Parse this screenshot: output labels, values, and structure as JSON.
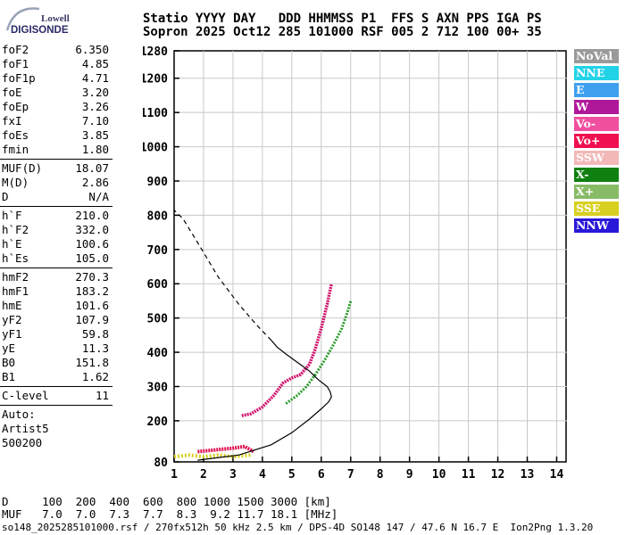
{
  "logo": {
    "line1": "Lowell",
    "line2": "DIGISONDE"
  },
  "header": {
    "line1": "Statio YYYY DAY   DDD HHMMSS P1  FFS S AXN PPS IGA PS",
    "line2": "Sopron 2025 Oct12 285 101000 RSF 005 2 712 100 00+ 35"
  },
  "params_group1": [
    {
      "name": "foF2",
      "value": "6.350"
    },
    {
      "name": "foF1",
      "value": "4.85"
    },
    {
      "name": "foF1p",
      "value": "4.71"
    },
    {
      "name": "foE",
      "value": "3.20"
    },
    {
      "name": "foEp",
      "value": "3.26"
    },
    {
      "name": "fxI",
      "value": "7.10"
    },
    {
      "name": "foEs",
      "value": "3.85"
    },
    {
      "name": "fmin",
      "value": "1.80"
    }
  ],
  "params_group2": [
    {
      "name": "MUF(D)",
      "value": "18.07"
    },
    {
      "name": "M(D)",
      "value": "2.86"
    },
    {
      "name": "D",
      "value": "N/A"
    }
  ],
  "params_group3": [
    {
      "name": "h`F",
      "value": "210.0"
    },
    {
      "name": "h`F2",
      "value": "332.0"
    },
    {
      "name": "h`E",
      "value": "100.6"
    },
    {
      "name": "h`Es",
      "value": "105.0"
    }
  ],
  "params_group4": [
    {
      "name": "hmF2",
      "value": "270.3"
    },
    {
      "name": "hmF1",
      "value": "183.2"
    },
    {
      "name": "hmE",
      "value": "101.6"
    },
    {
      "name": "yF2",
      "value": "107.9"
    },
    {
      "name": "yF1",
      "value": "59.8"
    },
    {
      "name": "yE",
      "value": "11.3"
    },
    {
      "name": "B0",
      "value": "151.8"
    },
    {
      "name": "B1",
      "value": "1.62"
    }
  ],
  "clevel": {
    "name": "C-level",
    "value": "11"
  },
  "auto": [
    "Auto:",
    "Artist5",
    "500200"
  ],
  "legend": [
    {
      "label": "NoVal",
      "color": "#9a9a9a"
    },
    {
      "label": "NNE",
      "color": "#22d3e8"
    },
    {
      "label": "E",
      "color": "#3fa0f0"
    },
    {
      "label": "W",
      "color": "#b0189a"
    },
    {
      "label": "Vo-",
      "color": "#f04fa0"
    },
    {
      "label": "Vo+",
      "color": "#f01050"
    },
    {
      "label": "SSW",
      "color": "#f2b8b8"
    },
    {
      "label": "X-",
      "color": "#108010"
    },
    {
      "label": "X+",
      "color": "#88bb66"
    },
    {
      "label": "SSE",
      "color": "#d8d020"
    },
    {
      "label": "NNW",
      "color": "#2a18d8"
    }
  ],
  "muf_table": {
    "row1": "D     100  200  400  600  800 1000 1500 3000 [km]",
    "row2": "MUF   7.0  7.0  7.3  7.7  8.3  9.2 11.7 18.1 [MHz]"
  },
  "footer": "so148_2025285101000.rsf / 270fx512h 50 kHz 2.5 km / DPS-4D SO148 147 / 47.6 N 16.7 E  Ion2Png 1.3.20",
  "chart_data": {
    "type": "scatter",
    "xlim": [
      1,
      14.5
    ],
    "ylim": [
      80,
      1280
    ],
    "xticks": [
      "1",
      "2",
      "3",
      "4",
      "5",
      "6",
      "7",
      "8",
      "9",
      "10",
      "11",
      "12",
      "13",
      "14"
    ],
    "yticks": [
      "80",
      "200",
      "300",
      "400",
      "500",
      "600",
      "700",
      "800",
      "900",
      "1000",
      "1100",
      "1200",
      "1280"
    ],
    "grid": true,
    "o_trace": [
      [
        3.3,
        215
      ],
      [
        3.6,
        220
      ],
      [
        4.0,
        240
      ],
      [
        4.4,
        275
      ],
      [
        4.7,
        310
      ],
      [
        5.0,
        325
      ],
      [
        5.3,
        335
      ],
      [
        5.6,
        365
      ],
      [
        5.8,
        410
      ],
      [
        6.0,
        470
      ],
      [
        6.2,
        540
      ],
      [
        6.35,
        600
      ]
    ],
    "x_trace": [
      [
        4.8,
        250
      ],
      [
        5.2,
        275
      ],
      [
        5.5,
        300
      ],
      [
        5.8,
        335
      ],
      [
        6.1,
        375
      ],
      [
        6.4,
        420
      ],
      [
        6.7,
        470
      ],
      [
        6.9,
        520
      ],
      [
        7.0,
        550
      ]
    ],
    "e_trace": [
      [
        1.8,
        110
      ],
      [
        2.4,
        115
      ],
      [
        3.0,
        120
      ],
      [
        3.4,
        125
      ],
      [
        3.7,
        110
      ]
    ],
    "es_trace": [
      [
        1.0,
        95
      ],
      [
        1.5,
        100
      ],
      [
        2.0,
        95
      ],
      [
        2.5,
        100
      ],
      [
        3.0,
        95
      ],
      [
        3.6,
        100
      ]
    ],
    "profile_solid": [
      [
        1.8,
        85
      ],
      [
        3.2,
        100
      ],
      [
        4.3,
        130
      ],
      [
        5.0,
        165
      ],
      [
        5.6,
        205
      ],
      [
        6.0,
        235
      ],
      [
        6.25,
        255
      ],
      [
        6.35,
        270
      ],
      [
        6.3,
        285
      ],
      [
        6.2,
        300
      ],
      [
        5.9,
        320
      ],
      [
        5.6,
        345
      ],
      [
        5.2,
        370
      ],
      [
        4.8,
        395
      ],
      [
        4.5,
        415
      ],
      [
        4.3,
        435
      ]
    ],
    "profile_dashed": [
      [
        4.3,
        435
      ],
      [
        3.8,
        480
      ],
      [
        3.2,
        540
      ],
      [
        2.5,
        620
      ],
      [
        1.8,
        720
      ],
      [
        1.3,
        790
      ],
      [
        1.0,
        815
      ]
    ]
  }
}
